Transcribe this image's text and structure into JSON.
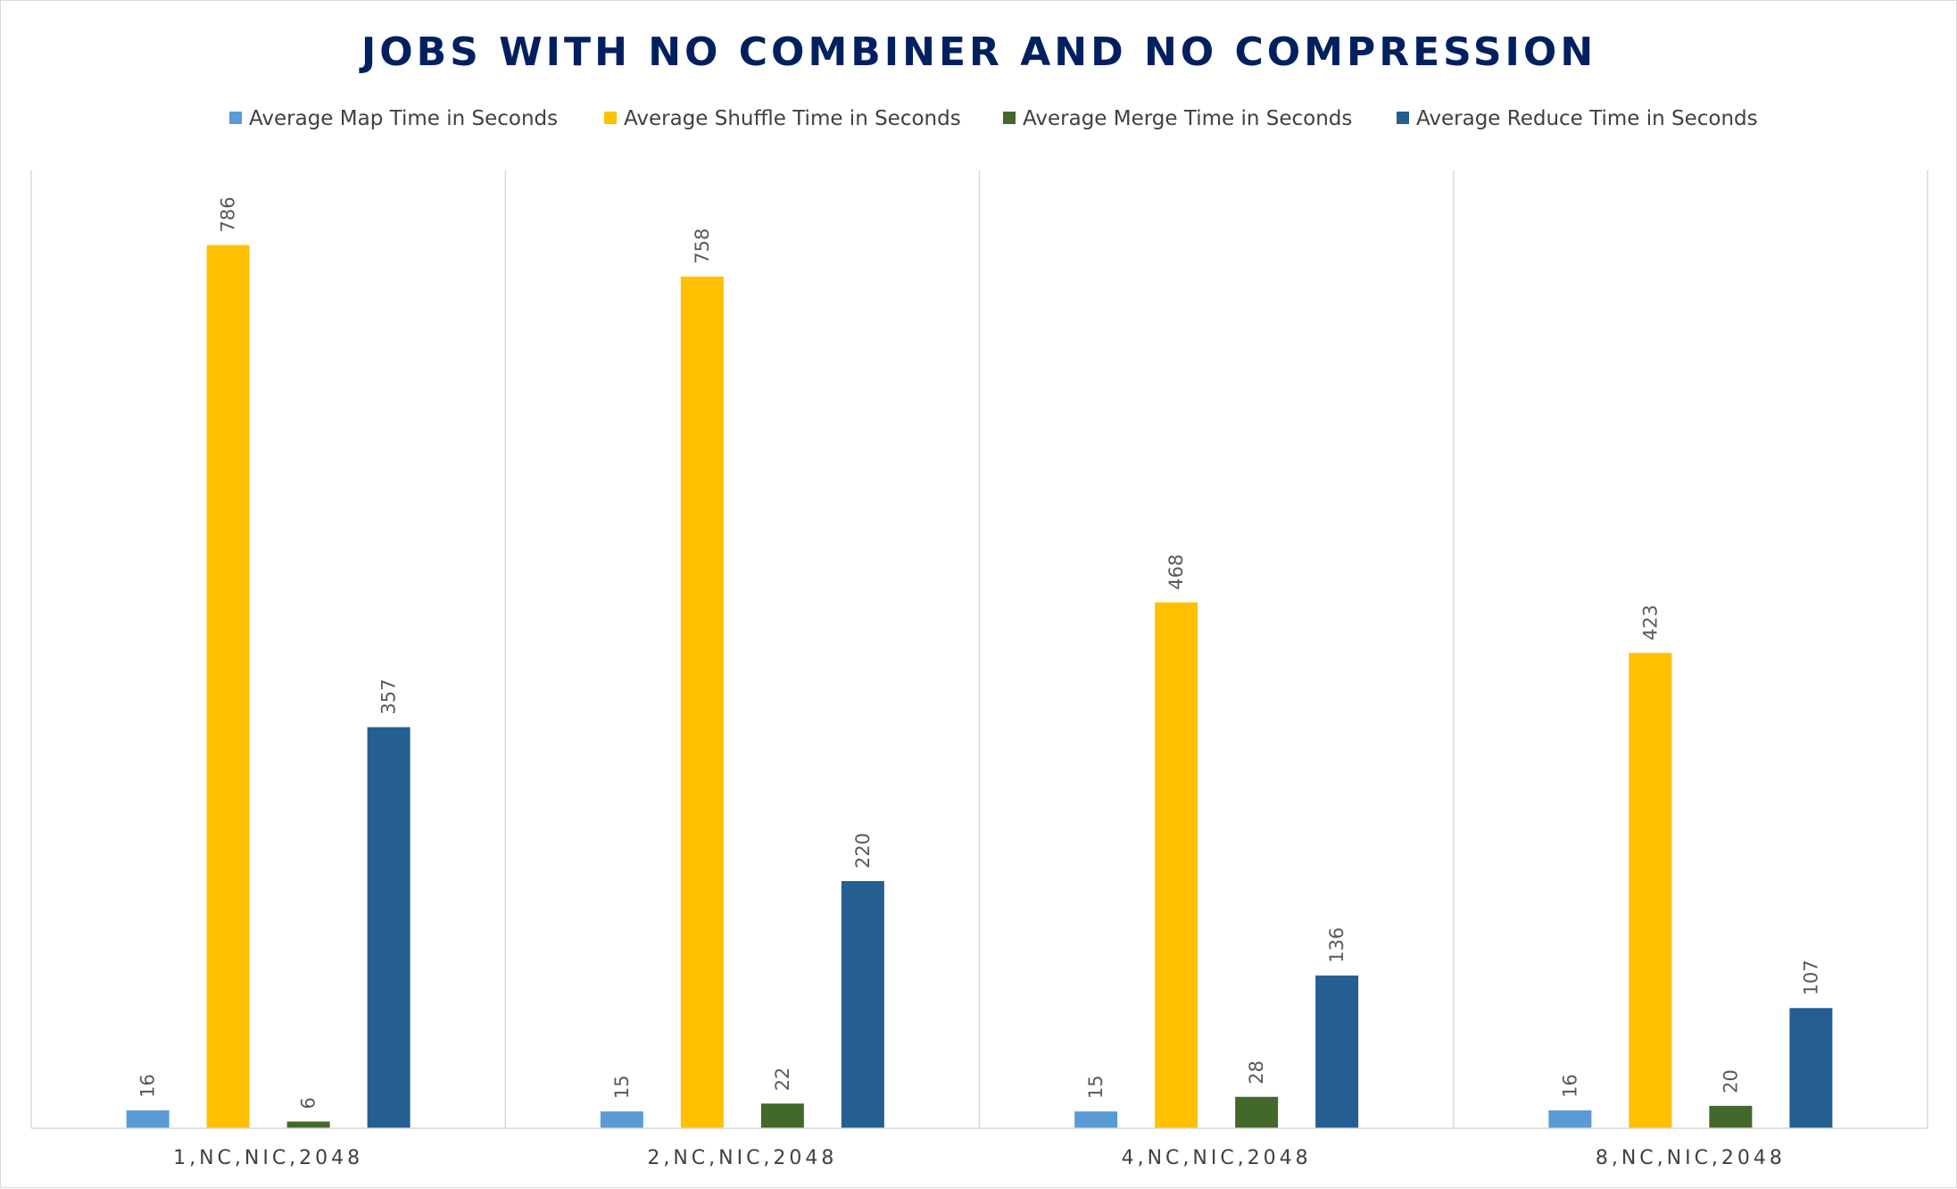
{
  "chart_data": {
    "type": "bar",
    "title": "JOBS WITH NO COMBINER AND NO COMPRESSION",
    "categories": [
      "1,NC,NIC,2048",
      "2,NC,NIC,2048",
      "4,NC,NIC,2048",
      "8,NC,NIC,2048"
    ],
    "series": [
      {
        "name": "Average Map Time in Seconds",
        "values": [
          16,
          15,
          15,
          16
        ],
        "color": "#5b9bd5"
      },
      {
        "name": "Average Shuffle Time in Seconds",
        "values": [
          786,
          758,
          468,
          423
        ],
        "color": "#ffc000"
      },
      {
        "name": "Average Merge Time in Seconds",
        "values": [
          6,
          22,
          28,
          20
        ],
        "color": "#43682b"
      },
      {
        "name": "Average Reduce Time in Seconds",
        "values": [
          357,
          220,
          136,
          107
        ],
        "color": "#255e91"
      }
    ],
    "ylim": [
      0,
      900
    ],
    "legend_position": "top",
    "grid": false,
    "category_separators": true,
    "data_labels": true,
    "title_color": "#002060"
  }
}
